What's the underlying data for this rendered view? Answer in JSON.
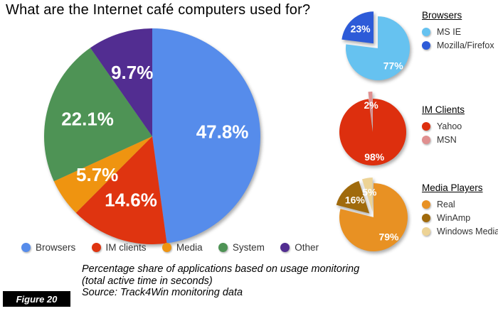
{
  "title": "What are the Internet café computers used for?",
  "figure_label": "Figure 20",
  "caption": {
    "line1": "Percentage share of  applications based on usage monitoring",
    "line2": "(total active time in seconds)",
    "line3": "Source: Track4Win monitoring data"
  },
  "chart_data": [
    {
      "id": "main",
      "type": "pie",
      "title": "",
      "categories": [
        "Browsers",
        "IM clients",
        "Media",
        "System",
        "Other"
      ],
      "values": [
        47.8,
        14.6,
        5.7,
        22.1,
        9.7
      ],
      "labels": [
        "47.8%",
        "14.6%",
        "5.7%",
        "22.1%",
        "9.7%"
      ],
      "colors": [
        "#568ceb",
        "#df3410",
        "#ef9410",
        "#4e9355",
        "#522d91"
      ],
      "exploded": [
        false,
        false,
        false,
        false,
        false
      ],
      "start_angle": 0,
      "legend_position": "bottom"
    },
    {
      "id": "browsers",
      "type": "pie",
      "title": "Browsers",
      "categories": [
        "MS IE",
        "Mozilla/Firefox"
      ],
      "values": [
        77,
        23
      ],
      "labels": [
        "77%",
        "23%"
      ],
      "colors": [
        "#66c2f0",
        "#2d5bd8"
      ],
      "exploded": [
        false,
        true
      ],
      "start_angle": 0,
      "legend_position": "right"
    },
    {
      "id": "im-clients",
      "type": "pie",
      "title": "IM Clients",
      "categories": [
        "Yahoo",
        "MSN"
      ],
      "values": [
        98,
        2
      ],
      "labels": [
        "98%",
        "2%"
      ],
      "colors": [
        "#dd2f0e",
        "#e08f8f"
      ],
      "exploded": [
        false,
        true
      ],
      "start_angle": 0,
      "legend_position": "right"
    },
    {
      "id": "media-players",
      "type": "pie",
      "title": "Media Players",
      "categories": [
        "Real",
        "WinAmp",
        "Windows Media"
      ],
      "values": [
        79,
        16,
        5
      ],
      "labels": [
        "79%",
        "16%",
        "5%"
      ],
      "colors": [
        "#e89123",
        "#a06a0c",
        "#edd395"
      ],
      "exploded": [
        false,
        true,
        true
      ],
      "start_angle": 0,
      "legend_position": "right"
    }
  ]
}
